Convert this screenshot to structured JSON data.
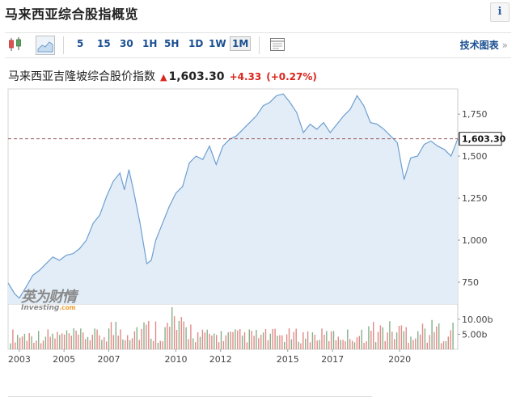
{
  "header": {
    "title": "马来西亚综合股指概览",
    "info_label": "i"
  },
  "toolbar": {
    "candlestick_icon": "candlestick-icon",
    "area_chart_icon": "area-chart-icon",
    "ranges": [
      "5",
      "15",
      "30",
      "1H",
      "5H",
      "1D",
      "1W",
      "1M"
    ],
    "active_range": "1M",
    "table_icon": "table-icon",
    "tech_chart_label": "技术图表",
    "tech_chart_chevron": "»"
  },
  "quote": {
    "name": "马来西亚吉隆坡综合股价指数",
    "arrow": "▲",
    "price": "1,603.30",
    "change": "+4.33",
    "change_pct": "(+0.27%)"
  },
  "colors": {
    "accent": "#1a4f91",
    "up": "#d9261c",
    "line": "#6e9fd1",
    "area": "#e2edf7",
    "vol_up": "#e08a86",
    "vol_down": "#86b08a"
  },
  "watermark": {
    "cn": "英为财情",
    "en": "Investing",
    "en_suffix": ".com"
  },
  "chart_data": {
    "type": "area",
    "title": "",
    "x_ticks": [
      "2003",
      "2005",
      "2007",
      "2010",
      "2012",
      "2015",
      "2017",
      "2020"
    ],
    "x_range": [
      2002.5,
      2022.6
    ],
    "y_range": [
      620,
      1900
    ],
    "y_ticks": [
      "1,750",
      "1,500",
      "1,250",
      "1,000",
      "750"
    ],
    "y_tick_values": [
      1750,
      1500,
      1250,
      1000,
      750
    ],
    "last_price_label": "1,603.30",
    "last_price": 1603.3,
    "volume_ticks": [
      "10.00b",
      "5.00b"
    ],
    "volume_tick_values": [
      10,
      5
    ],
    "volume_max": 14,
    "x": [
      2002.5,
      2002.8,
      2003.0,
      2003.3,
      2003.6,
      2003.9,
      2004.2,
      2004.5,
      2004.8,
      2005.1,
      2005.4,
      2005.7,
      2006.0,
      2006.3,
      2006.6,
      2006.9,
      2007.2,
      2007.5,
      2007.7,
      2007.9,
      2008.1,
      2008.4,
      2008.7,
      2008.9,
      2009.1,
      2009.4,
      2009.7,
      2010.0,
      2010.3,
      2010.6,
      2010.9,
      2011.2,
      2011.5,
      2011.8,
      2012.1,
      2012.4,
      2012.7,
      2013.0,
      2013.3,
      2013.6,
      2013.9,
      2014.2,
      2014.5,
      2014.8,
      2015.1,
      2015.4,
      2015.7,
      2016.0,
      2016.3,
      2016.6,
      2016.9,
      2017.2,
      2017.5,
      2017.8,
      2018.1,
      2018.4,
      2018.7,
      2019.0,
      2019.3,
      2019.6,
      2019.9,
      2020.2,
      2020.5,
      2020.8,
      2021.1,
      2021.4,
      2021.7,
      2022.0,
      2022.3,
      2022.6
    ],
    "y": [
      745,
      680,
      655,
      720,
      790,
      820,
      860,
      900,
      880,
      910,
      920,
      950,
      1000,
      1100,
      1150,
      1260,
      1350,
      1400,
      1300,
      1420,
      1300,
      1100,
      860,
      880,
      1000,
      1100,
      1200,
      1280,
      1320,
      1460,
      1500,
      1480,
      1560,
      1450,
      1560,
      1600,
      1620,
      1660,
      1700,
      1740,
      1800,
      1820,
      1860,
      1870,
      1820,
      1760,
      1640,
      1690,
      1660,
      1700,
      1640,
      1690,
      1740,
      1780,
      1860,
      1800,
      1700,
      1690,
      1660,
      1620,
      1580,
      1360,
      1490,
      1500,
      1570,
      1590,
      1560,
      1540,
      1500,
      1603
    ]
  }
}
